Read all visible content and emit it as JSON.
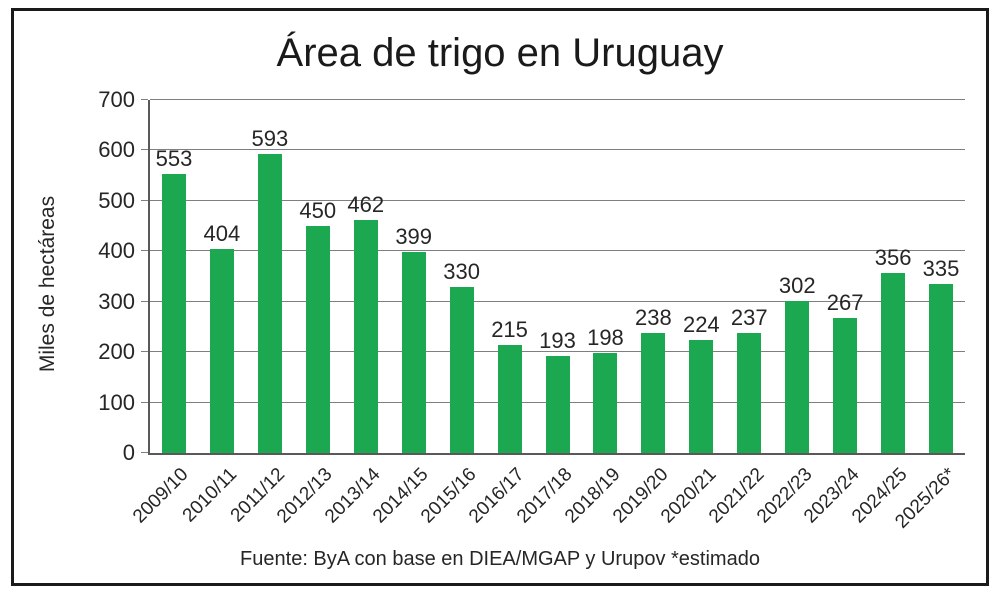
{
  "chart_data": {
    "type": "bar",
    "title": "Área de trigo en Uruguay",
    "ylabel": "Miles de hectáreas",
    "xlabel": "",
    "source_note": "Fuente: ByA con base en DIEA/MGAP y Urupov *estimado",
    "categories": [
      "2009/10",
      "2010/11",
      "2011/12",
      "2012/13",
      "2013/14",
      "2014/15",
      "2015/16",
      "2016/17",
      "2017/18",
      "2018/19",
      "2019/20",
      "2020/21",
      "2021/22",
      "2022/23",
      "2023/24",
      "2024/25",
      "2025/26*"
    ],
    "values": [
      553,
      404,
      593,
      450,
      462,
      399,
      330,
      215,
      193,
      198,
      238,
      224,
      237,
      302,
      267,
      356,
      335
    ],
    "ylim": [
      0,
      700
    ],
    "yticks": [
      0,
      100,
      200,
      300,
      400,
      500,
      600,
      700
    ],
    "grid": "horizontal",
    "legend": "none",
    "data_labels": "above-bars",
    "x_label_rotation_deg": 45,
    "colors": {
      "bar": "#1CA851",
      "gridline": "#7F7F7F",
      "axis": "#595959",
      "text": "#262626",
      "frame_border": "#1A1A1A",
      "background": "#FFFFFF"
    }
  }
}
